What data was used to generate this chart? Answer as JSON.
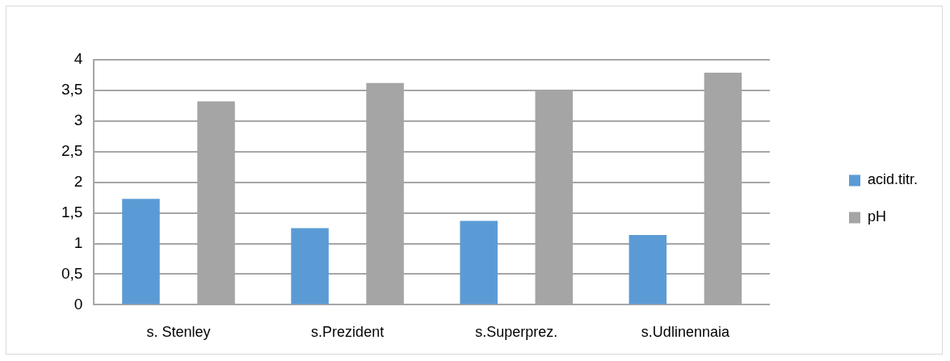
{
  "chart_data": {
    "type": "bar",
    "categories": [
      "s. Stenley",
      "s.Prezident",
      "s.Superprez.",
      "s.Udlinennaia"
    ],
    "series": [
      {
        "name": "acid.titr.",
        "color": "#5b9bd5",
        "values": [
          1.73,
          1.25,
          1.37,
          1.14
        ]
      },
      {
        "name": "pH",
        "color": "#a5a5a5",
        "values": [
          3.32,
          3.62,
          3.51,
          3.79
        ]
      }
    ],
    "ylim": [
      0,
      4
    ],
    "yticks": [
      0,
      {
        "value": 0.5,
        "label": "0,5"
      },
      1,
      {
        "value": 1.5,
        "label": "1,5"
      },
      2,
      {
        "value": 2.5,
        "label": "2,5"
      },
      3,
      {
        "value": 3.5,
        "label": "3,5"
      },
      4
    ],
    "grid": "y",
    "legend": "right"
  }
}
